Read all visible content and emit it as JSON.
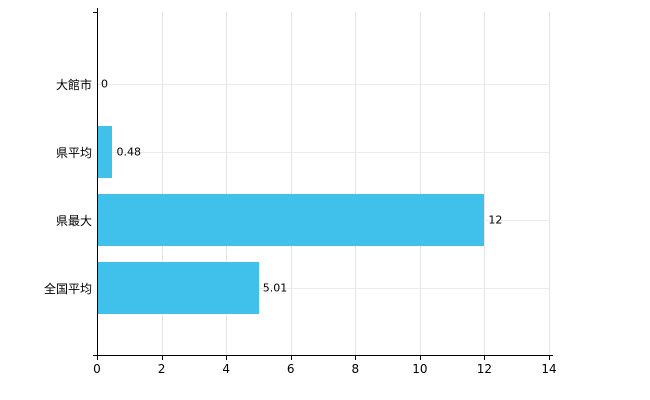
{
  "chart_data": {
    "type": "bar",
    "orientation": "horizontal",
    "title": "",
    "xlabel": "",
    "ylabel": "",
    "categories": [
      "大館市",
      "県平均",
      "県最大",
      "全国平均"
    ],
    "values": [
      0,
      0.48,
      12,
      5.01
    ],
    "value_labels": [
      "0",
      "0.48",
      "12",
      "5.01"
    ],
    "xlim": [
      0,
      14
    ],
    "x_ticks": [
      0,
      2,
      4,
      6,
      8,
      10,
      12,
      14
    ],
    "grid": true,
    "legend": "none",
    "bar_color": "#3fc1ec",
    "grid_color": "#e4e4e4",
    "axis_color": "#000000"
  }
}
